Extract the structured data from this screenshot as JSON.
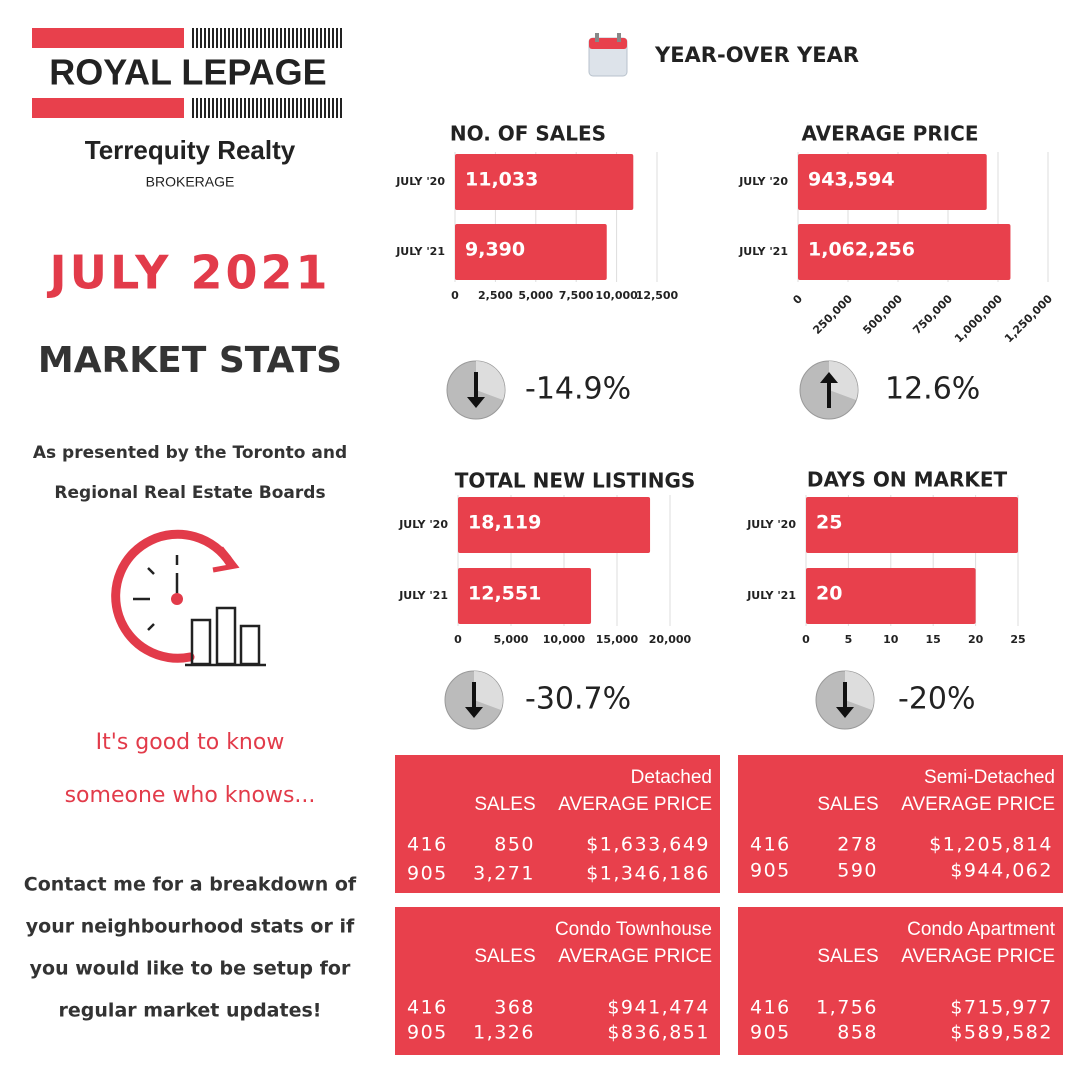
{
  "logo": {
    "name": "ROYAL LEPAGE",
    "company": "Terrequity Realty",
    "subtitle": "BROKERAGE"
  },
  "heading": {
    "month": "JULY 2021",
    "title": "MARKET STATS",
    "source": [
      "As presented by the Toronto and",
      "Regional Real Estate Boards"
    ]
  },
  "tagline": [
    "It's good to know",
    "someone who knows..."
  ],
  "contact": [
    "Contact me for a breakdown of",
    "your neighbourhood stats or if",
    "you would like to be setup for",
    "regular market updates!"
  ],
  "section_title": "YEAR-OVER YEAR",
  "chart_data": [
    {
      "type": "bar",
      "orientation": "horizontal",
      "title": "NO. OF SALES",
      "categories": [
        "JULY '20",
        "JULY '21"
      ],
      "values": [
        11033,
        9390
      ],
      "value_labels": [
        "11,033",
        "9,390"
      ],
      "color": "#e8404c",
      "xlim": [
        0,
        12500
      ],
      "xticks": [
        0,
        {
          "value": 2500,
          "label": "2,500"
        },
        {
          "value": 5000,
          "label": "5,000"
        },
        {
          "value": 7500,
          "label": "7,500"
        },
        {
          "value": 10000,
          "label": "10,000"
        },
        {
          "value": 12500,
          "label": "12,500"
        }
      ],
      "grid": true,
      "change": "-14.9%",
      "direction": "down"
    },
    {
      "type": "bar",
      "orientation": "horizontal",
      "title": "AVERAGE PRICE",
      "categories": [
        "JULY '20",
        "JULY '21"
      ],
      "values": [
        943594,
        1062256
      ],
      "value_labels": [
        "943,594",
        "1,062,256"
      ],
      "color": "#e8404c",
      "xlim": [
        0,
        1250000
      ],
      "xticks": [
        0,
        {
          "value": 250000,
          "label": "250,000"
        },
        {
          "value": 500000,
          "label": "500,000"
        },
        {
          "value": 750000,
          "label": "750,000"
        },
        {
          "value": 1000000,
          "label": "1,000,000"
        },
        {
          "value": 1250000,
          "label": "1,250,000"
        }
      ],
      "grid": true,
      "rotate_ticks": true,
      "change": "12.6%",
      "direction": "up"
    },
    {
      "type": "bar",
      "orientation": "horizontal",
      "title": "TOTAL NEW LISTINGS",
      "categories": [
        "JULY '20",
        "JULY '21"
      ],
      "values": [
        18119,
        12551
      ],
      "value_labels": [
        "18,119",
        "12,551"
      ],
      "color": "#e8404c",
      "xlim": [
        0,
        20000
      ],
      "xticks": [
        0,
        {
          "value": 5000,
          "label": "5,000"
        },
        {
          "value": 10000,
          "label": "10,000"
        },
        {
          "value": 15000,
          "label": "15,000"
        },
        {
          "value": 20000,
          "label": "20,000"
        }
      ],
      "grid": true,
      "change": "-30.7%",
      "direction": "down"
    },
    {
      "type": "bar",
      "orientation": "horizontal",
      "title": "DAYS ON MARKET",
      "categories": [
        "JULY '20",
        "JULY '21"
      ],
      "values": [
        25,
        20
      ],
      "color": "#e8404c",
      "xlim": [
        0,
        25
      ],
      "xticks": [
        0,
        5,
        10,
        15,
        20,
        25
      ],
      "grid": true,
      "change": "-20%",
      "direction": "down"
    }
  ],
  "tables": [
    {
      "title": "Detached",
      "headers": [
        "SALES",
        "AVERAGE PRICE"
      ],
      "rows": [
        [
          "416",
          "850",
          "$1,633,649"
        ],
        [
          "905",
          "3,271",
          "$1,346,186"
        ]
      ]
    },
    {
      "title": "Semi-Detached",
      "headers": [
        "SALES",
        "AVERAGE PRICE"
      ],
      "rows": [
        [
          "416",
          "278",
          "$1,205,814"
        ],
        [
          "905",
          "590",
          "$944,062"
        ]
      ]
    },
    {
      "title": "Condo Townhouse",
      "headers": [
        "SALES",
        "AVERAGE PRICE"
      ],
      "rows": [
        [
          "416",
          "368",
          "$941,474"
        ],
        [
          "905",
          "1,326",
          "$836,851"
        ]
      ]
    },
    {
      "title": "Condo Apartment",
      "headers": [
        "SALES",
        "AVERAGE PRICE"
      ],
      "rows": [
        [
          "416",
          "1,756",
          "$715,977"
        ],
        [
          "905",
          "858",
          "$589,582"
        ]
      ]
    }
  ]
}
